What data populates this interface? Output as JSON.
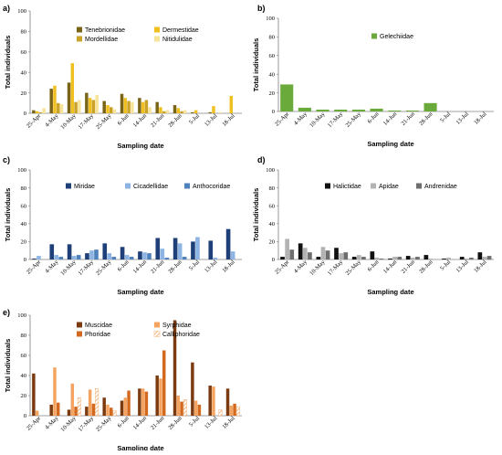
{
  "chart_data": [
    {
      "panel": "a)",
      "type": "bar",
      "ylabel": "Total individuals",
      "xlabel": "Sampling date",
      "ylim": [
        0,
        100
      ],
      "yticks": [
        0,
        20,
        40,
        60,
        80,
        100
      ],
      "grid": false,
      "legend": "top-left",
      "categories": [
        "25-Apr",
        "4-May",
        "10-May",
        "17-May",
        "25-May",
        "6-Jun",
        "14-Jun",
        "21-Jun",
        "28-Jun",
        "5-Jul",
        "13-Jul",
        "18-Jul"
      ],
      "series": [
        {
          "name": "Tenebrionidae",
          "color": "#7a6418",
          "values": [
            3,
            24,
            30,
            20,
            12,
            19,
            15,
            11,
            8,
            1,
            1,
            0
          ]
        },
        {
          "name": "Dermestidae",
          "color": "#f0c020",
          "values": [
            2,
            27,
            49,
            15,
            8,
            15,
            11,
            6,
            5,
            3,
            7,
            17
          ]
        },
        {
          "name": "Mordellidae",
          "color": "#c9a227",
          "values": [
            1,
            10,
            11,
            13,
            6,
            12,
            13,
            2,
            2,
            0,
            0,
            0
          ]
        },
        {
          "name": "Nitidulidae",
          "color": "#f7e39a",
          "values": [
            5,
            9,
            13,
            18,
            4,
            11,
            6,
            3,
            3,
            0,
            1,
            0
          ]
        }
      ]
    },
    {
      "panel": "b)",
      "type": "bar",
      "ylabel": "Total individuals",
      "xlabel": "Sampling date",
      "ylim": [
        0,
        100
      ],
      "yticks": [
        0,
        20,
        40,
        60,
        80,
        100
      ],
      "grid": false,
      "legend": "top-center",
      "categories": [
        "25-Apr",
        "4-May",
        "10-May",
        "17-May",
        "25-May",
        "6-Jun",
        "14-Jun",
        "21-Jun",
        "28-Jun",
        "5-Jul",
        "13-Jul",
        "18-Jul"
      ],
      "series": [
        {
          "name": "Gelechiidae",
          "color": "#6aaa3a",
          "values": [
            29,
            4,
            2,
            2,
            2,
            3,
            1,
            1,
            9,
            0,
            0,
            0
          ]
        }
      ]
    },
    {
      "panel": "c)",
      "type": "bar",
      "ylabel": "Total individuals",
      "xlabel": "Sampling date",
      "ylim": [
        0,
        100
      ],
      "yticks": [
        0,
        20,
        40,
        60,
        80,
        100
      ],
      "grid": false,
      "legend": "top-left",
      "categories": [
        "25-Apr",
        "4-May",
        "10-May",
        "17-May",
        "25-May",
        "6-Jun",
        "14-Jun",
        "21-Jun",
        "28-Jun",
        "5-Jul",
        "13-Jul",
        "18-Jul"
      ],
      "series": [
        {
          "name": "Miridae",
          "color": "#1f3f78",
          "values": [
            1,
            17,
            17,
            7,
            18,
            14,
            9,
            24,
            24,
            20,
            21,
            34
          ]
        },
        {
          "name": "Cicadellidae",
          "color": "#8db4e2",
          "values": [
            4,
            5,
            4,
            10,
            7,
            5,
            8,
            12,
            18,
            25,
            2,
            9
          ]
        },
        {
          "name": "Anthocoridae",
          "color": "#4f81bd",
          "values": [
            0,
            3,
            5,
            11,
            3,
            3,
            7,
            2,
            3,
            0,
            0,
            0
          ]
        }
      ]
    },
    {
      "panel": "d)",
      "type": "bar",
      "ylabel": "Total individuals",
      "xlabel": "Sampling date",
      "ylim": [
        0,
        100
      ],
      "yticks": [
        0,
        20,
        40,
        60,
        80,
        100
      ],
      "grid": false,
      "legend": "top-left",
      "categories": [
        "25-Apr",
        "4-May",
        "10-May",
        "17-May",
        "25-May",
        "6-Jun",
        "14-Jun",
        "21-Jun",
        "28-Jun",
        "5-Jul",
        "13-Jul",
        "18-Jul"
      ],
      "series": [
        {
          "name": "Halictidae",
          "color": "#111111",
          "values": [
            3,
            18,
            3,
            13,
            3,
            9,
            1,
            4,
            5,
            1,
            3,
            8
          ]
        },
        {
          "name": "Apidae",
          "color": "#b3b3b3",
          "values": [
            23,
            13,
            14,
            7,
            5,
            2,
            3,
            2,
            1,
            2,
            1,
            3
          ]
        },
        {
          "name": "Andrenidae",
          "color": "#6e6e6e",
          "values": [
            11,
            8,
            10,
            8,
            3,
            1,
            3,
            3,
            0,
            0,
            2,
            4
          ]
        }
      ]
    },
    {
      "panel": "e)",
      "type": "bar",
      "ylabel": "Total individuals",
      "xlabel": "Sampling date",
      "ylim": [
        0,
        100
      ],
      "yticks": [
        0,
        20,
        40,
        60,
        80,
        100
      ],
      "grid": false,
      "legend": "top-left",
      "categories": [
        "25-Apr",
        "4-May",
        "10-May",
        "17-May",
        "25-May",
        "6-Jun",
        "14-Jun",
        "21-Jun",
        "28-Jun",
        "5-Jul",
        "13-Jul",
        "18-Jul"
      ],
      "series": [
        {
          "name": "Muscidae",
          "color": "#7b3a10",
          "values": [
            42,
            11,
            6,
            9,
            18,
            15,
            27,
            40,
            95,
            53,
            30,
            27
          ]
        },
        {
          "name": "Syrphidae",
          "color": "#f4a460",
          "values": [
            5,
            48,
            32,
            26,
            11,
            18,
            27,
            37,
            20,
            15,
            29,
            10
          ]
        },
        {
          "name": "Phoridae",
          "color": "#d2691e",
          "values": [
            0,
            13,
            9,
            12,
            8,
            25,
            24,
            65,
            14,
            11,
            0,
            12
          ]
        },
        {
          "name": "Calliphoridae",
          "color": "#f4a460",
          "pattern": "hatch",
          "values": [
            0,
            0,
            18,
            27,
            5,
            0,
            0,
            0,
            16,
            0,
            6,
            9
          ]
        }
      ]
    }
  ]
}
